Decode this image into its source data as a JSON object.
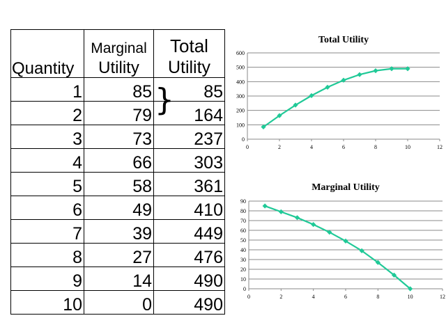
{
  "table": {
    "headers": {
      "quantity": "Quantity",
      "marginal_line1": "Marginal",
      "marginal_line2": "Utility",
      "total_line1": "Total",
      "total_line2": "Utility"
    },
    "rows": [
      {
        "q": "1",
        "mu": "85",
        "tu": "85"
      },
      {
        "q": "2",
        "mu": "79",
        "tu": "164"
      },
      {
        "q": "3",
        "mu": "73",
        "tu": "237"
      },
      {
        "q": "4",
        "mu": "66",
        "tu": "303"
      },
      {
        "q": "5",
        "mu": "58",
        "tu": "361"
      },
      {
        "q": "6",
        "mu": "49",
        "tu": "410"
      },
      {
        "q": "7",
        "mu": "39",
        "tu": "449"
      },
      {
        "q": "8",
        "mu": "27",
        "tu": "476"
      },
      {
        "q": "9",
        "mu": "14",
        "tu": "490"
      },
      {
        "q": "10",
        "mu": "0",
        "tu": "490"
      }
    ]
  },
  "bracket_glyph": "}",
  "chart_data": [
    {
      "type": "line",
      "title": "Total Utility",
      "xlabel": "",
      "ylabel": "",
      "x": [
        1,
        2,
        3,
        4,
        5,
        6,
        7,
        8,
        9,
        10
      ],
      "series": [
        {
          "values": [
            85,
            164,
            237,
            303,
            361,
            410,
            449,
            476,
            490,
            490
          ]
        }
      ],
      "xlim": [
        0,
        12
      ],
      "ylim": [
        0,
        600
      ],
      "xticks": [
        0,
        2,
        4,
        6,
        8,
        10,
        12
      ],
      "yticks": [
        0,
        100,
        200,
        300,
        400,
        500,
        600
      ],
      "grid": "horizontal",
      "color": "#20c997"
    },
    {
      "type": "line",
      "title": "Marginal Utility",
      "xlabel": "",
      "ylabel": "",
      "x": [
        1,
        2,
        3,
        4,
        5,
        6,
        7,
        8,
        9,
        10
      ],
      "series": [
        {
          "values": [
            85,
            79,
            73,
            66,
            58,
            49,
            39,
            27,
            14,
            0
          ]
        }
      ],
      "xlim": [
        0,
        12
      ],
      "ylim": [
        0,
        90
      ],
      "xticks": [
        0,
        2,
        4,
        6,
        8,
        10,
        12
      ],
      "yticks": [
        0,
        10,
        20,
        30,
        40,
        50,
        60,
        70,
        80,
        90
      ],
      "grid": "horizontal",
      "color": "#20c997"
    }
  ]
}
